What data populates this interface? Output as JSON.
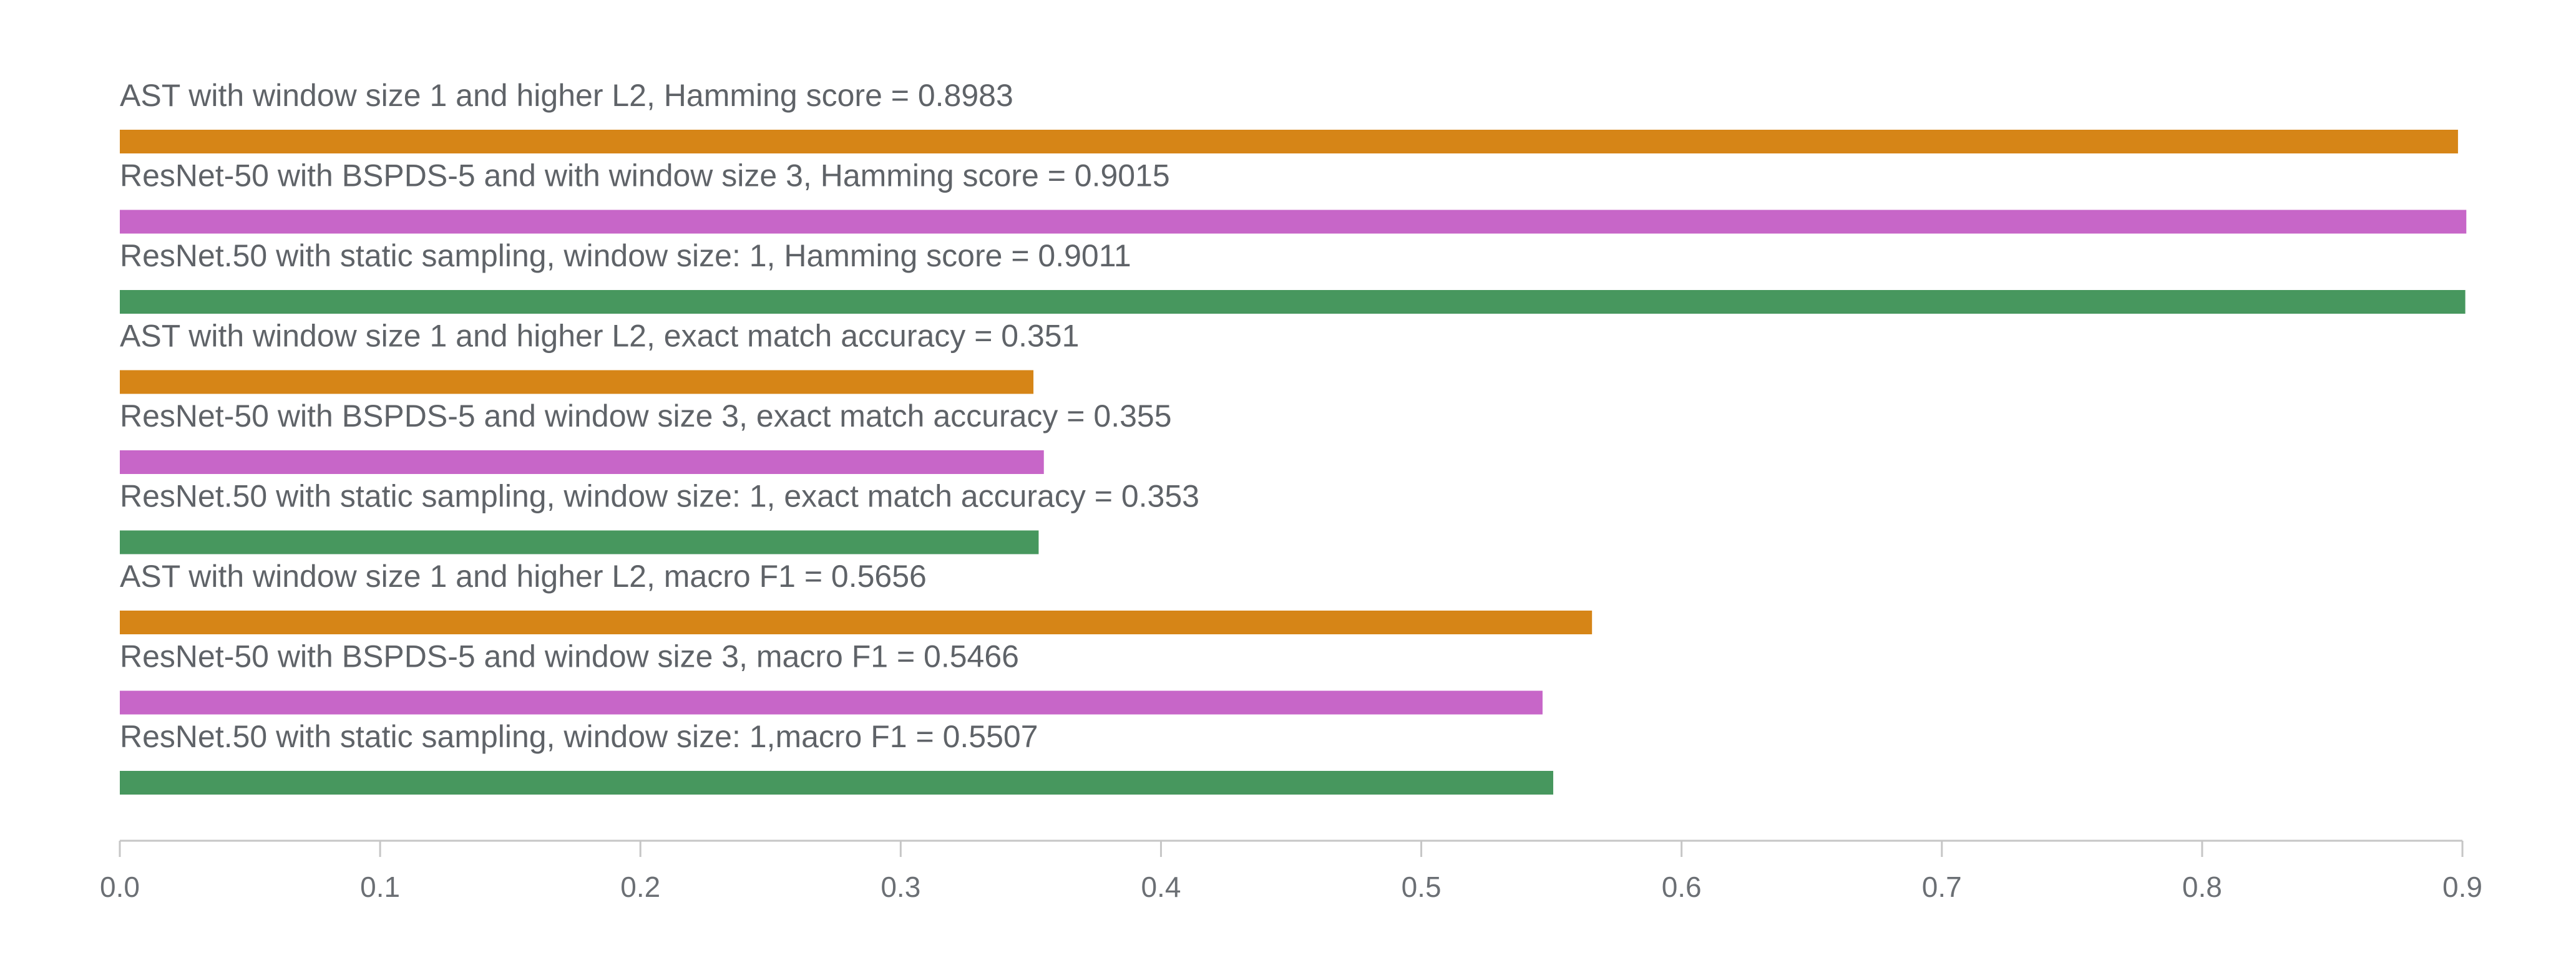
{
  "chart_data": {
    "type": "bar",
    "orientation": "horizontal",
    "title": "",
    "xlabel": "",
    "ylabel": "",
    "xlim": [
      0,
      0.9
    ],
    "x_ticks": [
      "0.0",
      "0.1",
      "0.2",
      "0.3",
      "0.4",
      "0.5",
      "0.6",
      "0.7",
      "0.8",
      "0.9"
    ],
    "grid": false,
    "legend": "none",
    "bars": [
      {
        "label": "AST with window size 1 and higher L2, Hamming score = 0.8983",
        "value": 0.8983,
        "color": "#d68517"
      },
      {
        "label": "ResNet-50 with BSPDS-5 and with window size 3, Hamming score = 0.9015",
        "value": 0.9015,
        "color": "#c766c8"
      },
      {
        "label": "ResNet.50 with static sampling, window size: 1, Hamming score = 0.9011",
        "value": 0.9011,
        "color": "#47975e"
      },
      {
        "label": "AST with window size 1 and higher L2, exact match accuracy = 0.351",
        "value": 0.351,
        "color": "#d68517"
      },
      {
        "label": "ResNet-50 with BSPDS-5 and window size 3, exact match accuracy = 0.355",
        "value": 0.355,
        "color": "#c766c8"
      },
      {
        "label": "ResNet.50 with static sampling, window size: 1, exact match accuracy = 0.353",
        "value": 0.353,
        "color": "#47975e"
      },
      {
        "label": "AST with window size 1 and higher L2, macro F1 = 0.5656",
        "value": 0.5656,
        "color": "#d68517"
      },
      {
        "label": "ResNet-50 with BSPDS-5 and window size 3, macro F1 = 0.5466",
        "value": 0.5466,
        "color": "#c766c8"
      },
      {
        "label": "ResNet.50 with static sampling, window size: 1,macro F1 = 0.5507",
        "value": 0.5507,
        "color": "#47975e"
      }
    ]
  }
}
